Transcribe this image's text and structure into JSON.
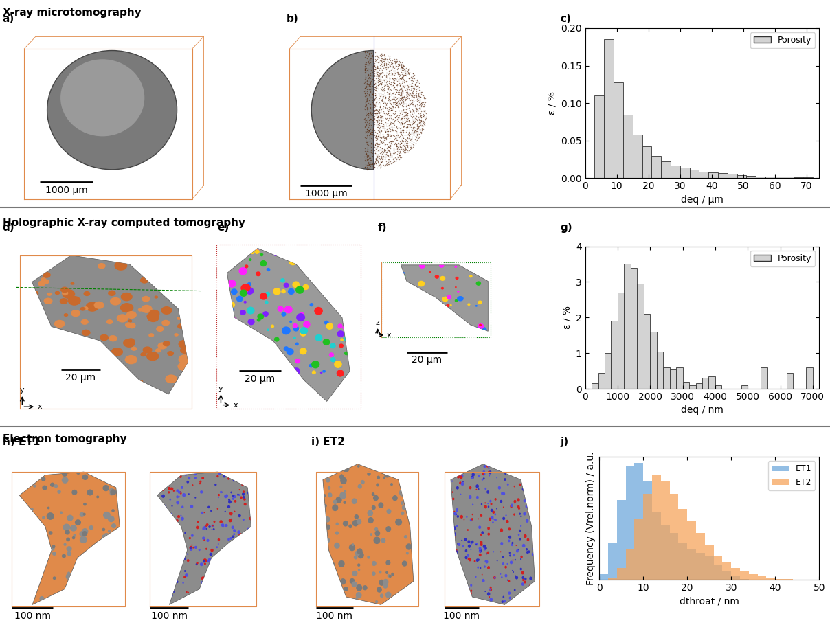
{
  "sections": [
    "X-ray microtomography",
    "Holographic X-ray computed tomography",
    "Electron tomography"
  ],
  "renders": [
    {
      "panel": "a)",
      "scale_bars": [
        "1000 µm"
      ]
    },
    {
      "panel": "b)",
      "scale_bars": [
        "1000 µm"
      ]
    },
    {
      "panel": "d)",
      "scale_bars": [
        "20 µm"
      ],
      "axes": [
        "x",
        "y"
      ]
    },
    {
      "panel": "e)",
      "scale_bars": [
        "20 µm"
      ],
      "axes": [
        "x",
        "y"
      ]
    },
    {
      "panel": "f)",
      "scale_bars": [
        "20 µm"
      ],
      "axes": [
        "x",
        "z"
      ]
    },
    {
      "panel": "h) ET1",
      "scale_bars": [
        "100 nm",
        "100 nm"
      ]
    },
    {
      "panel": "i) ET2",
      "scale_bars": [
        "100 nm",
        "100 nm"
      ]
    }
  ],
  "chart_data": [
    {
      "type": "histogram",
      "panel": "c)",
      "x_label": "deq / µm",
      "y_label": "ε / %",
      "bins": [
        3,
        6,
        9,
        12,
        15,
        18,
        21,
        24,
        27,
        30,
        33,
        36,
        39,
        42,
        45,
        48,
        51,
        54,
        57,
        60,
        63,
        66,
        69,
        72
      ],
      "series": [
        {
          "name": "Porosity",
          "color": "#d3d3d3",
          "values": [
            0.11,
            0.185,
            0.128,
            0.085,
            0.058,
            0.042,
            0.03,
            0.022,
            0.017,
            0.014,
            0.011,
            0.009,
            0.008,
            0.007,
            0.006,
            0.004,
            0.003,
            0.002,
            0.002,
            0.002,
            0.002,
            0.001,
            0.001
          ]
        }
      ],
      "xlim": [
        0,
        74
      ],
      "xticks": [
        0,
        10,
        20,
        30,
        40,
        50,
        60,
        70
      ],
      "ylim": [
        0,
        0.2
      ],
      "yticks": [
        {
          "value": 0,
          "label": "0.00"
        },
        {
          "value": 0.05,
          "label": "0.05"
        },
        {
          "value": 0.1,
          "label": "0.10"
        },
        {
          "value": 0.15,
          "label": "0.15"
        },
        {
          "value": 0.2,
          "label": "0.20"
        }
      ],
      "legend": "upper right"
    },
    {
      "type": "histogram",
      "panel": "g)",
      "x_label": "deq / nm",
      "y_label": "ε / %",
      "bins": [
        200,
        400,
        600,
        800,
        1000,
        1200,
        1400,
        1600,
        1800,
        2000,
        2200,
        2400,
        2600,
        2800,
        3000,
        3200,
        3400,
        3600,
        3800,
        4000,
        4200,
        4400,
        4600,
        4800,
        5000,
        5200,
        5400,
        5600,
        5800,
        6000,
        6200,
        6400,
        6600,
        6800,
        7000
      ],
      "series": [
        {
          "name": "Porosity",
          "color": "#d3d3d3",
          "values": [
            0.15,
            0.45,
            1.0,
            1.9,
            2.7,
            3.5,
            3.4,
            2.95,
            2.1,
            1.6,
            1.05,
            0.6,
            0.55,
            0.6,
            0.2,
            0.1,
            0.15,
            0.3,
            0.35,
            0.1,
            0,
            0,
            0,
            0.1,
            0,
            0,
            0.6,
            0,
            0,
            0,
            0.45,
            0,
            0,
            0.6
          ]
        }
      ],
      "xlim": [
        0,
        7200
      ],
      "xticks": [
        0,
        1000,
        2000,
        3000,
        4000,
        5000,
        6000,
        7000
      ],
      "ylim": [
        0,
        4
      ],
      "yticks": [
        0,
        1,
        2,
        3,
        4
      ],
      "legend": "upper right"
    },
    {
      "type": "histogram",
      "panel": "j)",
      "x_label": "dthroat / nm",
      "y_label": "Frequency (Vrel.norm) / a.u.",
      "bins": [
        0,
        2,
        4,
        6,
        8,
        10,
        12,
        14,
        16,
        18,
        20,
        22,
        24,
        26,
        28,
        30,
        32,
        34,
        36,
        38,
        40,
        42,
        44,
        46
      ],
      "series": [
        {
          "name": "ET1",
          "color": "#6fa8dc",
          "values": [
            0.05,
            0.3,
            0.65,
            0.93,
            0.95,
            0.8,
            0.55,
            0.45,
            0.38,
            0.3,
            0.25,
            0.22,
            0.2,
            0.12,
            0.07,
            0.03,
            0.01,
            0,
            0,
            0,
            0,
            0,
            0
          ]
        },
        {
          "name": "ET2",
          "color": "#f6a55c",
          "values": [
            0,
            0.02,
            0.1,
            0.25,
            0.5,
            0.7,
            0.85,
            0.8,
            0.7,
            0.58,
            0.48,
            0.38,
            0.28,
            0.2,
            0.14,
            0.1,
            0.07,
            0.05,
            0.03,
            0.02,
            0.01,
            0.01,
            0
          ]
        }
      ],
      "xlim": [
        0,
        50
      ],
      "xticks": [
        0,
        10,
        20,
        30,
        40,
        50
      ],
      "ylim": [
        0,
        1
      ],
      "tick_labels": "x",
      "legend": "upper right"
    }
  ]
}
